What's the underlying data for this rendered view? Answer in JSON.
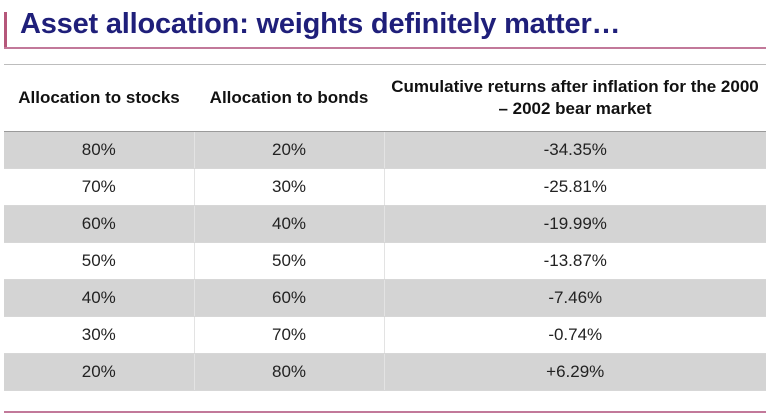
{
  "slide": {
    "title": "Asset allocation: weights definitely matter…"
  },
  "table": {
    "headers": [
      "Allocation to stocks",
      "Allocation to bonds",
      "Cumulative returns after inflation for the 2000 – 2002 bear market"
    ],
    "rows": [
      [
        "80%",
        "20%",
        "-34.35%"
      ],
      [
        "70%",
        "30%",
        "-25.81%"
      ],
      [
        "60%",
        "40%",
        "-19.99%"
      ],
      [
        "50%",
        "50%",
        "-13.87%"
      ],
      [
        "40%",
        "60%",
        "-7.46%"
      ],
      [
        "30%",
        "70%",
        "-0.74%"
      ],
      [
        "20%",
        "80%",
        "+6.29%"
      ]
    ]
  },
  "colors": {
    "title": "#1f1f7a",
    "accent_rule": "#c2799a",
    "shaded_row": "#d4d4d4"
  }
}
